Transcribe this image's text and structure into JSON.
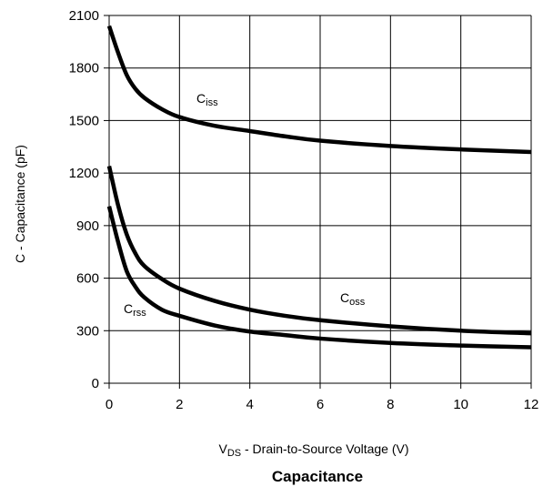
{
  "chart_data": {
    "type": "line",
    "title": "Capacitance",
    "xlabel": {
      "prefix": "V",
      "sub": "DS",
      "rest": " - Drain-to-Source Voltage (V)"
    },
    "ylabel": "C - Capacitance (pF)",
    "xlim": [
      0,
      12
    ],
    "ylim": [
      0,
      2100
    ],
    "xticks": [
      "0",
      "2",
      "4",
      "6",
      "8",
      "10",
      "12"
    ],
    "yticks": [
      "0",
      "300",
      "600",
      "900",
      "1200",
      "1500",
      "1800",
      "2100"
    ],
    "grid": true,
    "series": [
      {
        "name": {
          "main": "C",
          "sub": "iss"
        },
        "x": [
          0,
          0.25,
          0.5,
          0.75,
          1,
          1.5,
          2,
          3,
          4,
          5,
          6,
          8,
          10,
          12
        ],
        "y": [
          2040,
          1890,
          1760,
          1680,
          1630,
          1565,
          1520,
          1470,
          1440,
          1410,
          1385,
          1355,
          1335,
          1320
        ]
      },
      {
        "name": {
          "main": "C",
          "sub": "oss"
        },
        "x": [
          0,
          0.25,
          0.5,
          0.75,
          1,
          1.5,
          2,
          3,
          4,
          5,
          6,
          8,
          10,
          12
        ],
        "y": [
          1240,
          1020,
          850,
          740,
          670,
          595,
          540,
          470,
          420,
          385,
          360,
          325,
          300,
          285
        ]
      },
      {
        "name": {
          "main": "C",
          "sub": "rss"
        },
        "x": [
          0,
          0.25,
          0.5,
          0.75,
          1,
          1.5,
          2,
          3,
          4,
          5,
          6,
          8,
          10,
          12
        ],
        "y": [
          1010,
          810,
          640,
          550,
          490,
          420,
          385,
          330,
          295,
          275,
          255,
          230,
          215,
          205
        ]
      }
    ]
  }
}
